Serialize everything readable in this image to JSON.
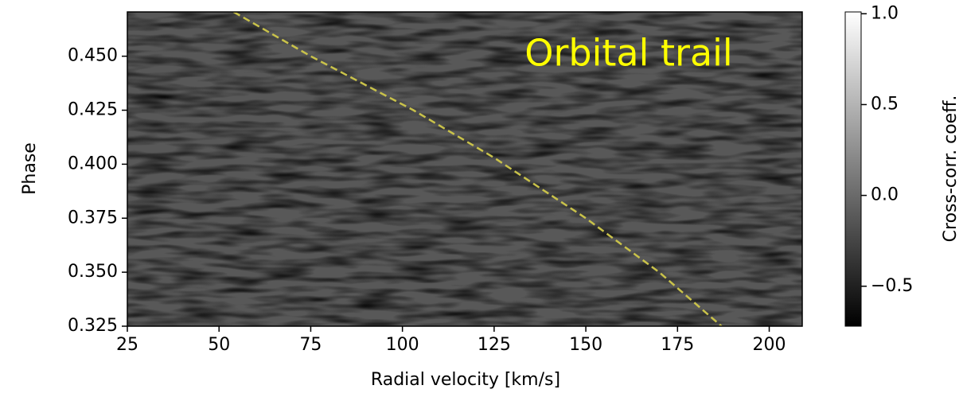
{
  "chart_data": {
    "type": "heatmap",
    "xlabel": "Radial velocity [km/s]",
    "ylabel": "Phase",
    "annotation": "Orbital trail",
    "annotation_color": "#ffff00",
    "colorbar_label": "Cross-corr. coeff.",
    "xlim": [
      25,
      209
    ],
    "ylim": [
      0.325,
      0.4705
    ],
    "xticks": [
      25,
      50,
      75,
      100,
      125,
      150,
      175,
      200
    ],
    "yticks": [
      0.325,
      {
        "value": 0.35,
        "label": "0.350"
      },
      0.375,
      {
        "value": 0.4,
        "label": "0.400"
      },
      0.425,
      {
        "value": 0.45,
        "label": "0.450"
      }
    ],
    "clim": [
      -0.72,
      1.01
    ],
    "cticks": [
      {
        "value": -0.5,
        "label": "−0.5"
      },
      {
        "value": 0,
        "label": "0.0"
      },
      {
        "value": 0.5,
        "label": "0.5"
      },
      {
        "value": 1,
        "label": "1.0"
      }
    ],
    "x": [
      54,
      75,
      103,
      125,
      150,
      170,
      187
    ],
    "series": [
      {
        "color": "#c9c24a",
        "values": [
          0.4705,
          0.45,
          0.425,
          0.403,
          0.375,
          0.35,
          0.325
        ]
      }
    ]
  }
}
